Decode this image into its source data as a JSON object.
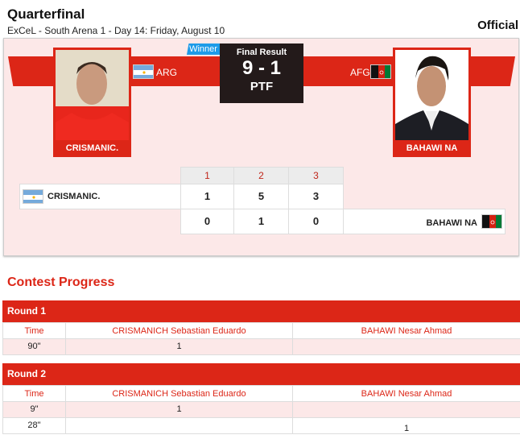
{
  "header": {
    "title": "Quarterfinal",
    "subtitle": "ExCeL - South Arena 1 - Day 14: Friday, August 10",
    "status": "Official"
  },
  "match": {
    "winner_label": "Winner",
    "final_result_label": "Final Result",
    "score": "9 - 1",
    "decision": "PTF",
    "left": {
      "name": "CRISMANIC.",
      "country": "ARG"
    },
    "right": {
      "name": "BAHAWI NA",
      "country": "AFG"
    }
  },
  "round_scores": {
    "rounds": [
      "1",
      "2",
      "3"
    ],
    "left": {
      "name": "CRISMANIC.",
      "scores": [
        "1",
        "5",
        "3"
      ]
    },
    "right": {
      "name": "BAHAWI NA",
      "scores": [
        "0",
        "1",
        "0"
      ]
    }
  },
  "contest_progress": {
    "title": "Contest Progress",
    "columns": [
      "Time",
      "CRISMANICH Sebastian Eduardo",
      "BAHAWI Nesar Ahmad"
    ],
    "rounds": [
      {
        "label": "Round 1",
        "rows": [
          [
            "90\"",
            "1",
            ""
          ]
        ]
      },
      {
        "label": "Round 2",
        "rows": [
          [
            "9\"",
            "1",
            ""
          ],
          [
            "28\"",
            "",
            "1"
          ]
        ]
      }
    ]
  },
  "colors": {
    "accent": "#dc2617",
    "panel": "#fce8e8",
    "winner": "#1e9be8",
    "scorebox": "#231a1a"
  }
}
